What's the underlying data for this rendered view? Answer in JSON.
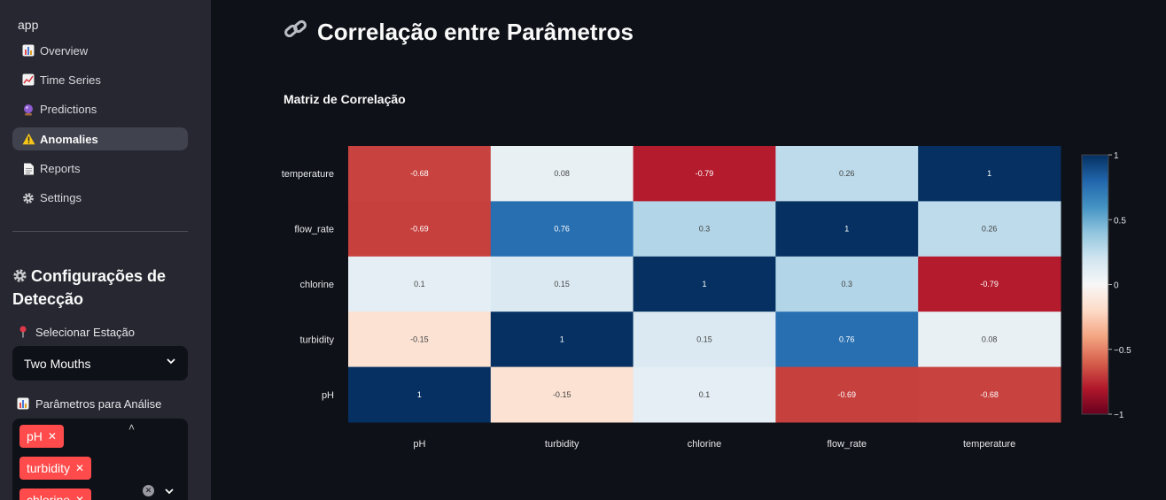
{
  "sidebar": {
    "app_title": "app",
    "nav_items": [
      {
        "label": "Overview",
        "icon": "bar-chart-icon"
      },
      {
        "label": "Time Series",
        "icon": "line-chart-icon"
      },
      {
        "label": "Predictions",
        "icon": "crystal-ball-icon"
      },
      {
        "label": "Anomalies",
        "icon": "warning-icon"
      },
      {
        "label": "Reports",
        "icon": "document-icon"
      },
      {
        "label": "Settings",
        "icon": "gear-icon"
      }
    ],
    "active_item": "Anomalies",
    "section_title": "⚙️ Configurações de Detecção",
    "section_title_text": "Configurações de Detecção",
    "station_label": "Selecionar Estação",
    "station_value": "Two Mouths",
    "params_label": "Parâmetros para Análise",
    "selected_params": [
      "pH",
      "turbidity",
      "chlorine"
    ]
  },
  "main": {
    "title": "Correlação entre Parâmetros",
    "subtitle": "Matriz de Correlação"
  },
  "colors": {
    "accent": "#ff4b4b",
    "background": "#0e1117",
    "sidebar": "#262730"
  },
  "chart_data": {
    "type": "heatmap",
    "title": "Matriz de Correlação",
    "x_categories": [
      "pH",
      "turbidity",
      "chlorine",
      "flow_rate",
      "temperature"
    ],
    "y_categories": [
      "temperature",
      "flow_rate",
      "chlorine",
      "turbidity",
      "pH"
    ],
    "values": [
      [
        -0.68,
        0.08,
        -0.79,
        0.26,
        1
      ],
      [
        -0.69,
        0.76,
        0.3,
        1,
        0.26
      ],
      [
        0.1,
        0.15,
        1,
        0.3,
        -0.79
      ],
      [
        -0.15,
        1,
        0.15,
        0.76,
        0.08
      ],
      [
        1,
        -0.15,
        0.1,
        -0.69,
        -0.68
      ]
    ],
    "colorscale": "RdBu",
    "zlim": [
      -1,
      1
    ],
    "colorbar_ticks": [
      1,
      0.5,
      0,
      -0.5,
      -1
    ],
    "colorbar_tick_labels": [
      "1",
      "0.5",
      "0",
      "−0.5",
      "−1"
    ]
  }
}
